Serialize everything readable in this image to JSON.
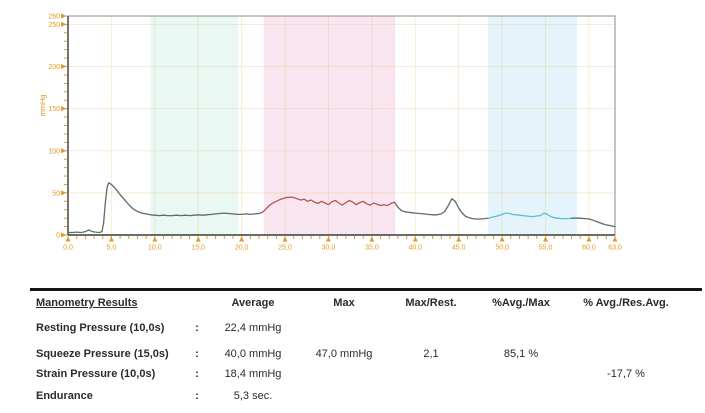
{
  "chart_data": {
    "type": "line",
    "title": "",
    "xlabel": "",
    "ylabel": "mmHg",
    "xlim": [
      0,
      63
    ],
    "ylim": [
      0,
      260
    ],
    "grid": "faint orange gridlines, x every 5 s, y every 50 mmHg",
    "legend": "none",
    "x_ticks": [
      {
        "u": 0,
        "label": "0,0"
      },
      {
        "u": 5,
        "label": "5,0"
      },
      {
        "u": 10,
        "label": "10,0"
      },
      {
        "u": 15,
        "label": "15,0"
      },
      {
        "u": 20,
        "label": "20,0"
      },
      {
        "u": 25,
        "label": "25,0"
      },
      {
        "u": 30,
        "label": "30,0"
      },
      {
        "u": 35,
        "label": "35,0"
      },
      {
        "u": 40,
        "label": "40,0"
      },
      {
        "u": 45,
        "label": "45,0"
      },
      {
        "u": 50,
        "label": "50,0"
      },
      {
        "u": 55,
        "label": "55,0"
      },
      {
        "u": 60,
        "label": "60,0"
      },
      {
        "u": 63,
        "label": "63,0"
      }
    ],
    "x_minor_step": 1,
    "y_ticks": [
      {
        "v": 0,
        "label": "0"
      },
      {
        "v": 50,
        "label": "50"
      },
      {
        "v": 100,
        "label": "100"
      },
      {
        "v": 150,
        "label": "150"
      },
      {
        "v": 200,
        "label": "200"
      },
      {
        "v": 250,
        "label": "250"
      },
      {
        "v": 260,
        "label": "260"
      }
    ],
    "y_minor_step": 10,
    "bands": [
      {
        "name": "resting-phase",
        "from": 9.5,
        "to": 19.6,
        "color": "#e9f8f2"
      },
      {
        "name": "squeeze-phase",
        "from": 22.55,
        "to": 37.7,
        "color": "#f9e5ef"
      },
      {
        "name": "strain-phase",
        "from": 48.4,
        "to": 58.6,
        "color": "#e4f4fa"
      }
    ],
    "segments": [
      {
        "from": 0,
        "to": 22.4,
        "color": "#5f6b66"
      },
      {
        "from": 22.4,
        "to": 37.6,
        "color": "#b4574f"
      },
      {
        "from": 37.6,
        "to": 48.4,
        "color": "#5f6b66"
      },
      {
        "from": 48.4,
        "to": 58.0,
        "color": "#5bbfd4"
      },
      {
        "from": 58.0,
        "to": 63,
        "color": "#5f6b66"
      }
    ],
    "series": [
      {
        "name": "anal-pressure-mmHg",
        "points": [
          [
            0,
            3
          ],
          [
            0.5,
            3
          ],
          [
            1,
            3.5
          ],
          [
            1.5,
            3
          ],
          [
            2,
            4
          ],
          [
            2.4,
            6
          ],
          [
            2.8,
            4
          ],
          [
            3.2,
            3.5
          ],
          [
            3.6,
            3
          ],
          [
            3.9,
            4
          ],
          [
            4.1,
            14
          ],
          [
            4.3,
            38
          ],
          [
            4.5,
            57
          ],
          [
            4.7,
            62
          ],
          [
            5,
            60
          ],
          [
            5.3,
            57
          ],
          [
            5.7,
            52
          ],
          [
            6,
            48
          ],
          [
            6.5,
            42
          ],
          [
            7,
            36
          ],
          [
            7.5,
            31
          ],
          [
            8,
            28
          ],
          [
            8.5,
            26
          ],
          [
            9,
            25
          ],
          [
            9.5,
            24
          ],
          [
            10,
            23.5
          ],
          [
            10.5,
            23
          ],
          [
            11,
            23.5
          ],
          [
            11.5,
            23
          ],
          [
            12,
            23
          ],
          [
            12.5,
            23.5
          ],
          [
            13,
            23
          ],
          [
            13.5,
            23.5
          ],
          [
            14,
            23
          ],
          [
            14.5,
            23.5
          ],
          [
            15,
            24
          ],
          [
            15.5,
            23.5
          ],
          [
            16,
            24
          ],
          [
            16.5,
            24.5
          ],
          [
            17,
            25
          ],
          [
            17.5,
            25.5
          ],
          [
            18,
            26
          ],
          [
            18.5,
            25.5
          ],
          [
            19,
            25
          ],
          [
            19.5,
            24.5
          ],
          [
            20,
            24.5
          ],
          [
            20.5,
            25
          ],
          [
            21,
            24.5
          ],
          [
            21.5,
            25
          ],
          [
            22,
            25.5
          ],
          [
            22.4,
            27
          ],
          [
            22.8,
            31
          ],
          [
            23.2,
            35
          ],
          [
            23.6,
            38
          ],
          [
            24,
            40
          ],
          [
            24.4,
            42
          ],
          [
            24.8,
            43.5
          ],
          [
            25.2,
            44.5
          ],
          [
            25.6,
            45
          ],
          [
            26,
            44.5
          ],
          [
            26.4,
            43
          ],
          [
            26.8,
            41.5
          ],
          [
            27.2,
            42.5
          ],
          [
            27.6,
            40
          ],
          [
            28,
            41.5
          ],
          [
            28.4,
            39
          ],
          [
            28.8,
            37.5
          ],
          [
            29.2,
            40
          ],
          [
            29.6,
            38
          ],
          [
            30,
            36
          ],
          [
            30.4,
            39.5
          ],
          [
            30.8,
            41
          ],
          [
            31.2,
            38
          ],
          [
            31.6,
            35.5
          ],
          [
            32,
            38.5
          ],
          [
            32.4,
            41
          ],
          [
            32.8,
            39
          ],
          [
            33.2,
            36
          ],
          [
            33.6,
            38.5
          ],
          [
            34,
            40
          ],
          [
            34.4,
            37
          ],
          [
            34.8,
            35.5
          ],
          [
            35.2,
            38
          ],
          [
            35.6,
            36.5
          ],
          [
            36,
            35
          ],
          [
            36.4,
            36
          ],
          [
            36.8,
            35
          ],
          [
            37.2,
            37.5
          ],
          [
            37.6,
            39
          ],
          [
            38,
            33
          ],
          [
            38.4,
            29
          ],
          [
            38.8,
            27.5
          ],
          [
            39.2,
            27
          ],
          [
            39.6,
            26.5
          ],
          [
            40,
            26
          ],
          [
            40.5,
            25.5
          ],
          [
            41,
            25
          ],
          [
            41.5,
            24.5
          ],
          [
            42,
            24
          ],
          [
            42.5,
            24
          ],
          [
            43,
            25
          ],
          [
            43.4,
            28
          ],
          [
            43.8,
            35
          ],
          [
            44.2,
            43
          ],
          [
            44.6,
            40
          ],
          [
            45,
            32
          ],
          [
            45.4,
            26
          ],
          [
            45.8,
            22
          ],
          [
            46.2,
            20.5
          ],
          [
            46.6,
            19.5
          ],
          [
            47,
            19
          ],
          [
            47.5,
            19
          ],
          [
            48,
            19.5
          ],
          [
            48.4,
            20
          ],
          [
            48.8,
            21
          ],
          [
            49.2,
            22
          ],
          [
            49.6,
            23
          ],
          [
            50,
            24.5
          ],
          [
            50.4,
            26
          ],
          [
            50.8,
            25.5
          ],
          [
            51.2,
            24.5
          ],
          [
            51.6,
            24
          ],
          [
            52,
            23.5
          ],
          [
            52.4,
            23
          ],
          [
            52.8,
            22.5
          ],
          [
            53.2,
            22
          ],
          [
            53.6,
            22
          ],
          [
            54,
            22.5
          ],
          [
            54.4,
            23
          ],
          [
            54.8,
            26
          ],
          [
            55.2,
            24.5
          ],
          [
            55.6,
            22
          ],
          [
            56,
            20.5
          ],
          [
            56.4,
            20
          ],
          [
            56.8,
            19.5
          ],
          [
            57.2,
            19.5
          ],
          [
            57.6,
            19.5
          ],
          [
            58,
            20
          ],
          [
            58.5,
            20
          ],
          [
            59,
            20
          ],
          [
            59.5,
            19.5
          ],
          [
            60,
            19
          ],
          [
            60.5,
            17.5
          ],
          [
            61,
            15.5
          ],
          [
            61.5,
            13.5
          ],
          [
            62,
            12
          ],
          [
            62.5,
            11
          ],
          [
            63,
            10
          ]
        ]
      }
    ],
    "colors": {
      "axis_tick": "#e09a26",
      "axis_label": "#e09a26",
      "plot_border": "#9aa09e",
      "axis_line": "#3c4140",
      "gridline": "rgba(235,185,110,0.30)"
    }
  },
  "table": {
    "title": "Manometry Results",
    "columns": {
      "average": "Average",
      "max": "Max",
      "max_rest": "Max/Rest.",
      "avg_max": "%Avg./Max",
      "avg_resavg": "% Avg./Res.Avg."
    },
    "rows": [
      {
        "label": "Resting Pressure (10,0s)",
        "colon": ":",
        "average": "22,4 mmHg",
        "max": "",
        "max_rest": "",
        "avg_max": "",
        "avg_resavg": ""
      },
      {
        "label": "Squeeze Pressure (15,0s)",
        "colon": ":",
        "average": "40,0 mmHg",
        "max": "47,0 mmHg",
        "max_rest": "2,1",
        "avg_max": "85,1 %",
        "avg_resavg": ""
      },
      {
        "label": "Strain Pressure (10,0s)",
        "colon": ":",
        "average": "18,4 mmHg",
        "max": "",
        "max_rest": "",
        "avg_max": "",
        "avg_resavg": "-17,7 %"
      },
      {
        "label": "Endurance",
        "colon": ":",
        "average": "5,3 sec.",
        "max": "",
        "max_rest": "",
        "avg_max": "",
        "avg_resavg": ""
      }
    ]
  }
}
